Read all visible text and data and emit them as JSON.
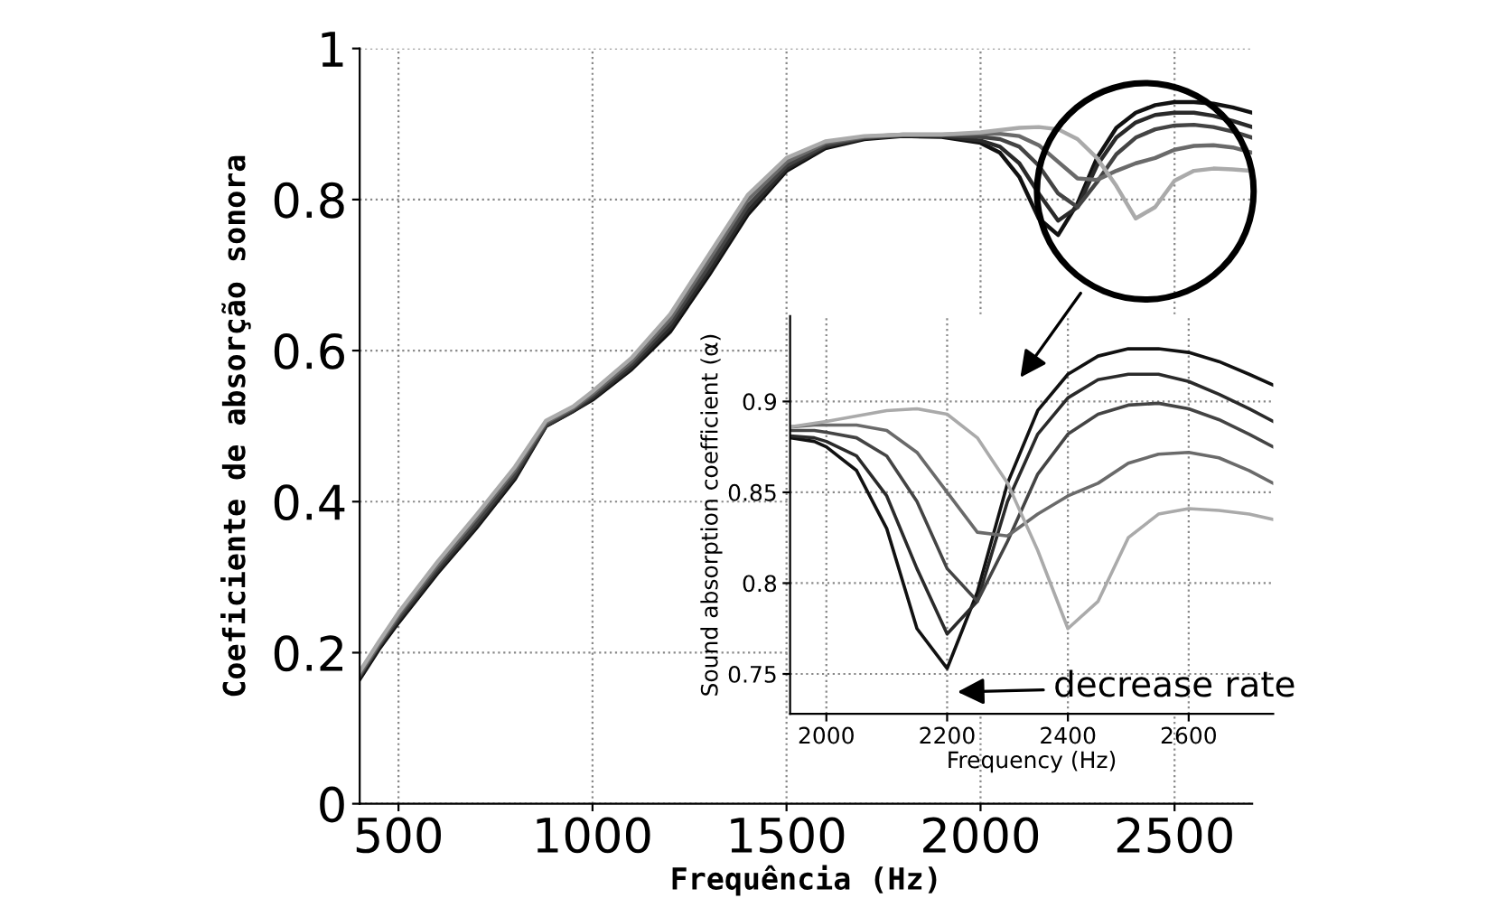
{
  "chart_data": [
    {
      "type": "line",
      "xlabel": "Frequência (Hz)",
      "ylabel": "Coeficiente de absorção sonora",
      "x": [
        400,
        450,
        500,
        600,
        700,
        800,
        880,
        950,
        1000,
        1100,
        1200,
        1300,
        1400,
        1500,
        1600,
        1700,
        1800,
        1900,
        2000,
        2050,
        2100,
        2150,
        2200,
        2250,
        2300,
        2350,
        2400,
        2450,
        2500,
        2550,
        2600,
        2650,
        2700
      ],
      "series": [
        {
          "color": "#111111",
          "values": [
            0.165,
            0.205,
            0.24,
            0.305,
            0.365,
            0.43,
            0.5,
            0.52,
            0.535,
            0.575,
            0.625,
            0.7,
            0.78,
            0.838,
            0.868,
            0.88,
            0.884,
            0.883,
            0.875,
            0.862,
            0.83,
            0.775,
            0.753,
            0.795,
            0.855,
            0.895,
            0.915,
            0.925,
            0.929,
            0.929,
            0.927,
            0.922,
            0.915
          ]
        },
        {
          "color": "#2a2a2a",
          "values": [
            0.168,
            0.208,
            0.243,
            0.308,
            0.368,
            0.433,
            0.5,
            0.52,
            0.537,
            0.578,
            0.63,
            0.705,
            0.785,
            0.841,
            0.87,
            0.881,
            0.885,
            0.884,
            0.878,
            0.87,
            0.848,
            0.808,
            0.772,
            0.79,
            0.845,
            0.882,
            0.902,
            0.912,
            0.915,
            0.915,
            0.911,
            0.904,
            0.896
          ]
        },
        {
          "color": "#444444",
          "values": [
            0.17,
            0.21,
            0.246,
            0.312,
            0.372,
            0.437,
            0.502,
            0.522,
            0.54,
            0.582,
            0.636,
            0.712,
            0.792,
            0.845,
            0.872,
            0.882,
            0.885,
            0.885,
            0.883,
            0.88,
            0.87,
            0.845,
            0.808,
            0.79,
            0.823,
            0.86,
            0.882,
            0.893,
            0.898,
            0.899,
            0.896,
            0.89,
            0.882
          ]
        },
        {
          "color": "#6a6a6a",
          "values": [
            0.172,
            0.212,
            0.25,
            0.316,
            0.378,
            0.442,
            0.505,
            0.524,
            0.543,
            0.586,
            0.642,
            0.72,
            0.8,
            0.85,
            0.875,
            0.883,
            0.886,
            0.886,
            0.887,
            0.887,
            0.884,
            0.872,
            0.85,
            0.828,
            0.826,
            0.838,
            0.848,
            0.855,
            0.866,
            0.871,
            0.872,
            0.869,
            0.862
          ]
        },
        {
          "color": "#aaaaaa",
          "values": [
            0.175,
            0.215,
            0.253,
            0.32,
            0.382,
            0.446,
            0.507,
            0.526,
            0.546,
            0.59,
            0.648,
            0.727,
            0.806,
            0.855,
            0.877,
            0.884,
            0.886,
            0.886,
            0.889,
            0.892,
            0.895,
            0.896,
            0.893,
            0.88,
            0.855,
            0.818,
            0.775,
            0.79,
            0.825,
            0.838,
            0.841,
            0.84,
            0.838
          ]
        }
      ],
      "xlim": [
        400,
        2700
      ],
      "ylim": [
        0,
        1
      ],
      "xticks": [
        500,
        1000,
        1500,
        2000,
        2500
      ],
      "yticks": [
        0,
        0.2,
        0.4,
        0.6,
        0.8,
        1
      ],
      "grid": true,
      "line_style": "solid"
    },
    {
      "type": "line",
      "xlabel": "Frequency (Hz)",
      "ylabel": "Sound absorption coefficient (α)",
      "x": [
        1940,
        1980,
        2000,
        2050,
        2100,
        2150,
        2200,
        2250,
        2300,
        2350,
        2400,
        2450,
        2500,
        2550,
        2600,
        2650,
        2700,
        2740
      ],
      "series": [
        {
          "color": "#111111",
          "values": [
            0.88,
            0.878,
            0.875,
            0.862,
            0.83,
            0.775,
            0.753,
            0.795,
            0.855,
            0.895,
            0.915,
            0.925,
            0.929,
            0.929,
            0.927,
            0.922,
            0.915,
            0.909
          ]
        },
        {
          "color": "#2a2a2a",
          "values": [
            0.881,
            0.88,
            0.878,
            0.87,
            0.848,
            0.808,
            0.772,
            0.79,
            0.845,
            0.882,
            0.902,
            0.912,
            0.915,
            0.915,
            0.911,
            0.904,
            0.896,
            0.889
          ]
        },
        {
          "color": "#444444",
          "values": [
            0.884,
            0.884,
            0.883,
            0.88,
            0.87,
            0.845,
            0.808,
            0.79,
            0.823,
            0.86,
            0.882,
            0.893,
            0.898,
            0.899,
            0.896,
            0.89,
            0.882,
            0.875
          ]
        },
        {
          "color": "#6a6a6a",
          "values": [
            0.886,
            0.887,
            0.887,
            0.887,
            0.884,
            0.872,
            0.85,
            0.828,
            0.826,
            0.838,
            0.848,
            0.855,
            0.866,
            0.871,
            0.872,
            0.869,
            0.862,
            0.855
          ]
        },
        {
          "color": "#aaaaaa",
          "values": [
            0.886,
            0.888,
            0.889,
            0.892,
            0.895,
            0.896,
            0.893,
            0.88,
            0.855,
            0.818,
            0.775,
            0.79,
            0.825,
            0.838,
            0.841,
            0.84,
            0.838,
            0.835
          ]
        }
      ],
      "xlim": [
        1940,
        2740
      ],
      "ylim": [
        0.728,
        0.947
      ],
      "xticks": [
        2000,
        2200,
        2400,
        2600
      ],
      "yticks": [
        0.75,
        0.8,
        0.85,
        0.9
      ],
      "grid": true,
      "line_style": "solid",
      "annotations": [
        "decrease rate"
      ]
    }
  ]
}
